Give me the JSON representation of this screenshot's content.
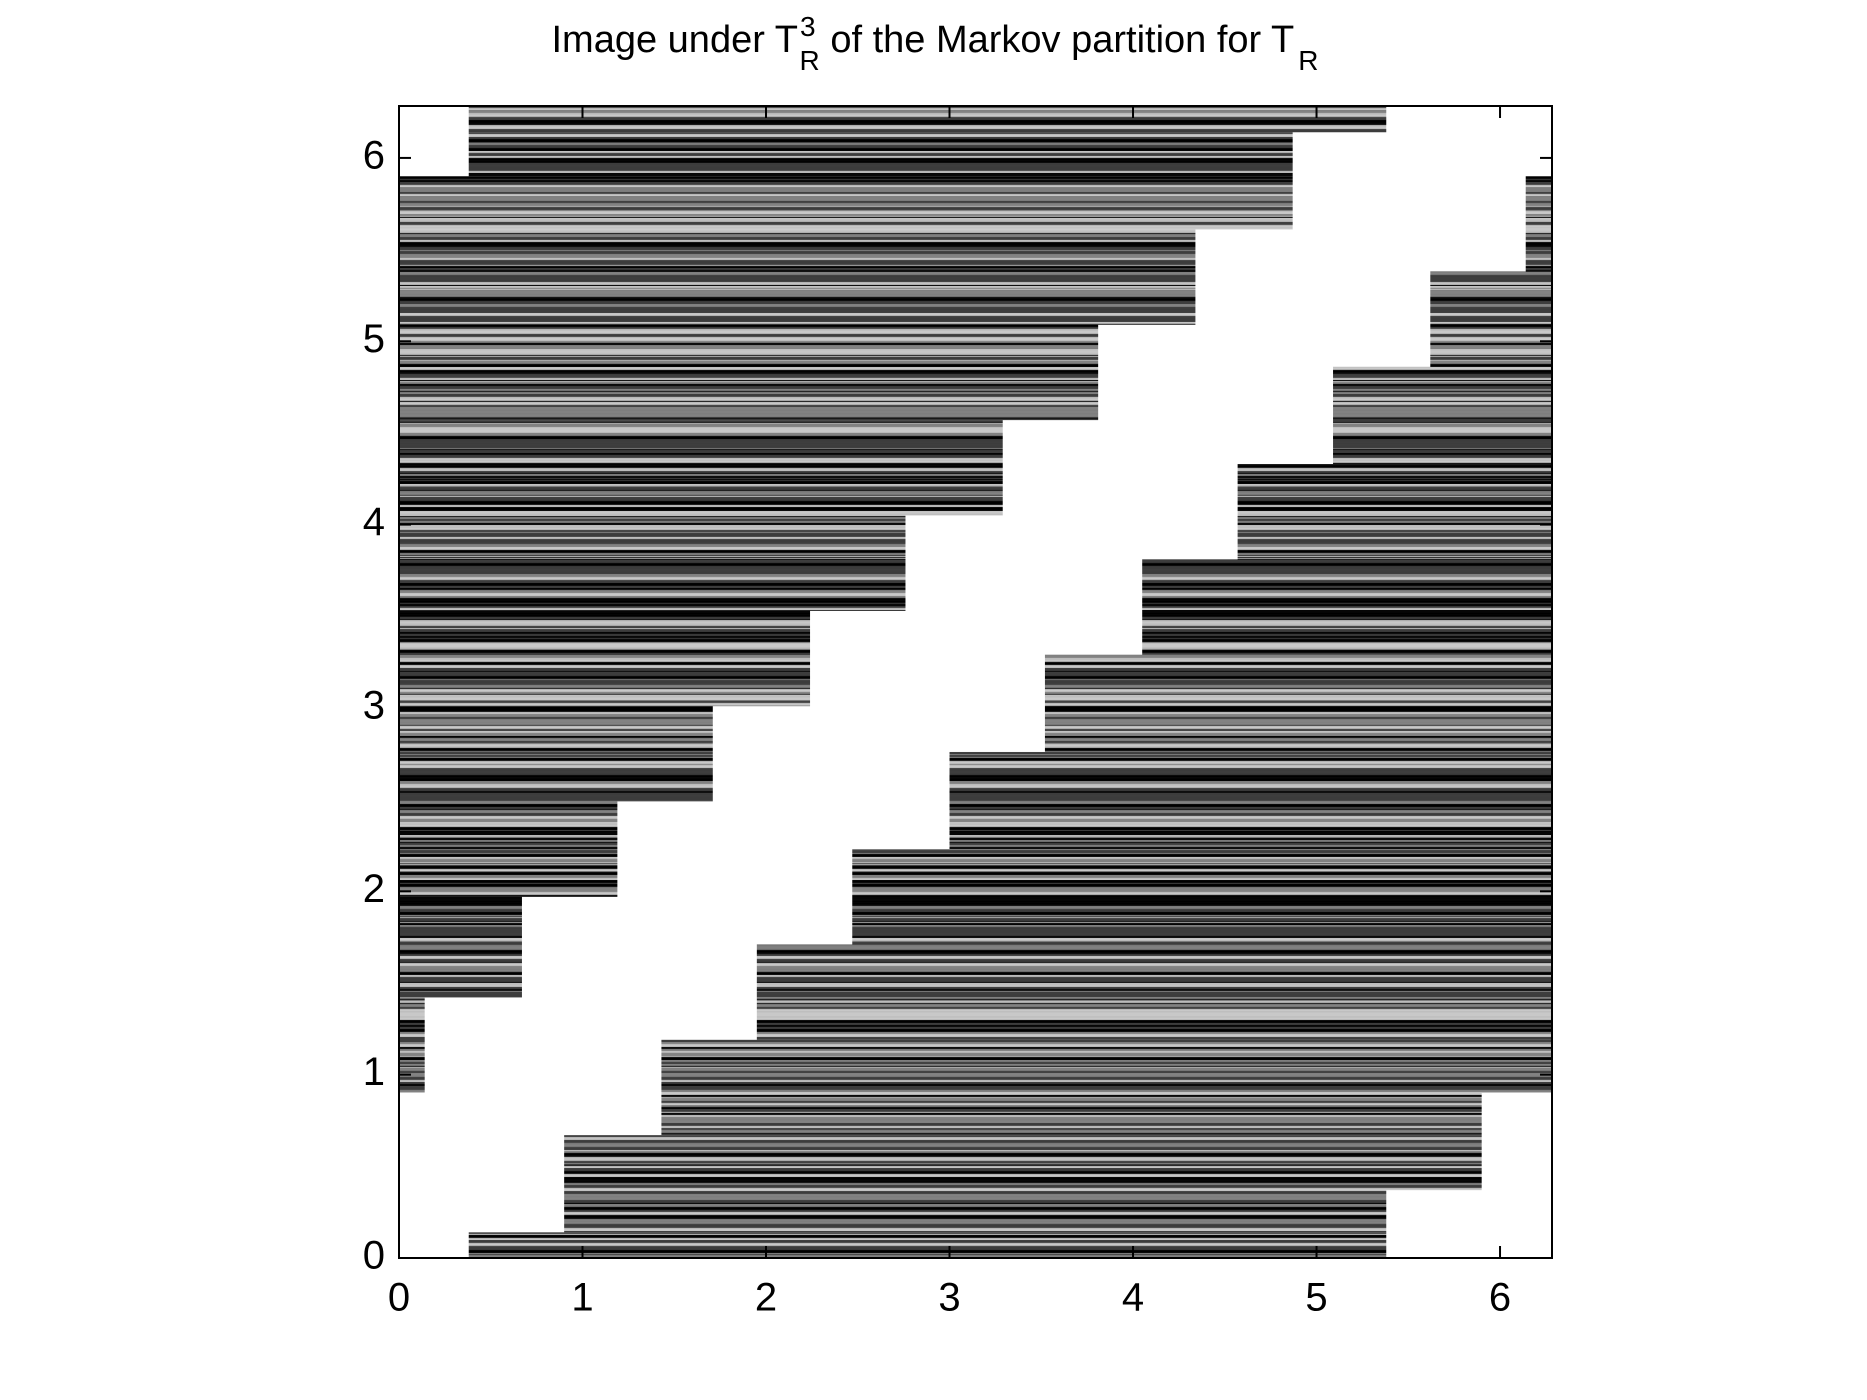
{
  "chart_data": {
    "type": "region",
    "title_parts": [
      "Image under T",
      "3",
      "R",
      " of the Markov partition for T",
      "R"
    ],
    "xlim": [
      0,
      6.2832
    ],
    "ylim": [
      0,
      6.2832
    ],
    "xticks": [
      0,
      1,
      2,
      3,
      4,
      5,
      6
    ],
    "yticks": [
      0,
      1,
      2,
      3,
      4,
      5,
      6
    ],
    "regions": [
      {
        "x": [
          0.38,
          5.38
        ],
        "y": [
          6.14,
          6.2832
        ]
      },
      {
        "x": [
          0.38,
          4.87
        ],
        "y": [
          5.9,
          6.14
        ]
      },
      {
        "x": [
          0,
          4.87
        ],
        "y": [
          5.61,
          5.9
        ]
      },
      {
        "x": [
          0,
          4.34
        ],
        "y": [
          5.09,
          5.61
        ]
      },
      {
        "x": [
          0,
          3.81
        ],
        "y": [
          4.57,
          5.09
        ]
      },
      {
        "x": [
          0,
          3.29
        ],
        "y": [
          4.05,
          4.57
        ]
      },
      {
        "x": [
          0,
          2.76
        ],
        "y": [
          3.53,
          4.05
        ]
      },
      {
        "x": [
          0,
          2.24
        ],
        "y": [
          3.01,
          3.53
        ]
      },
      {
        "x": [
          0,
          1.71
        ],
        "y": [
          2.49,
          3.01
        ]
      },
      {
        "x": [
          0,
          1.19
        ],
        "y": [
          1.97,
          2.49
        ]
      },
      {
        "x": [
          0,
          0.67
        ],
        "y": [
          1.42,
          1.97
        ]
      },
      {
        "x": [
          0,
          0.14
        ],
        "y": [
          0.9,
          1.42
        ]
      },
      {
        "x": [
          0.38,
          5.38
        ],
        "y": [
          0,
          0.14
        ]
      },
      {
        "x": [
          0.9,
          5.38
        ],
        "y": [
          0.14,
          0.37
        ]
      },
      {
        "x": [
          0.9,
          5.9
        ],
        "y": [
          0.37,
          0.67
        ]
      },
      {
        "x": [
          1.43,
          5.9
        ],
        "y": [
          0.67,
          0.9
        ]
      },
      {
        "x": [
          1.43,
          6.2832
        ],
        "y": [
          0.9,
          1.19
        ]
      },
      {
        "x": [
          1.95,
          6.2832
        ],
        "y": [
          1.19,
          1.71
        ]
      },
      {
        "x": [
          2.47,
          6.2832
        ],
        "y": [
          1.71,
          2.23
        ]
      },
      {
        "x": [
          3.0,
          6.2832
        ],
        "y": [
          2.23,
          2.76
        ]
      },
      {
        "x": [
          3.52,
          6.2832
        ],
        "y": [
          2.76,
          3.29
        ]
      },
      {
        "x": [
          4.05,
          6.2832
        ],
        "y": [
          3.29,
          3.81
        ]
      },
      {
        "x": [
          4.57,
          6.2832
        ],
        "y": [
          3.81,
          4.33
        ]
      },
      {
        "x": [
          5.09,
          6.2832
        ],
        "y": [
          4.33,
          4.86
        ]
      },
      {
        "x": [
          5.62,
          6.2832
        ],
        "y": [
          4.86,
          5.38
        ]
      },
      {
        "x": [
          6.14,
          6.2832
        ],
        "y": [
          5.38,
          5.9
        ]
      }
    ]
  }
}
